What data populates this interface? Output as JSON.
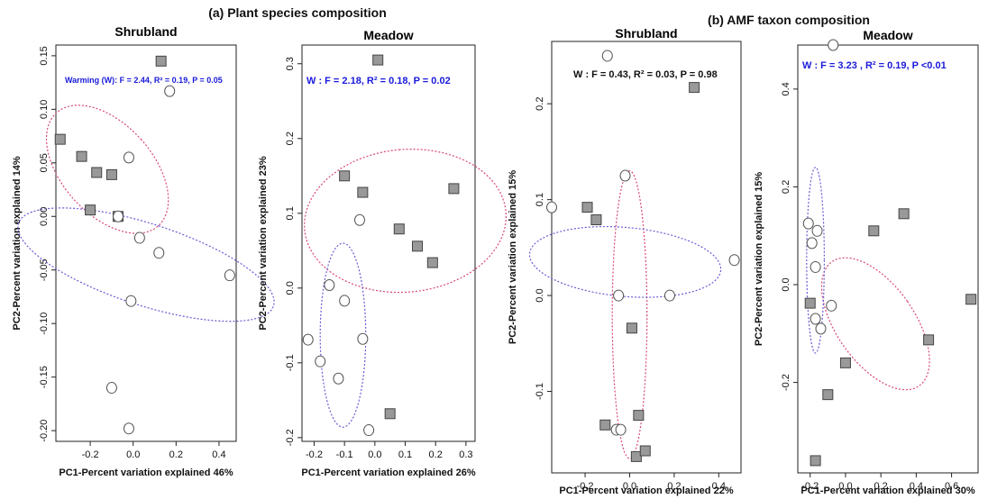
{
  "section_titles": {
    "a": "(a) Plant species composition",
    "b": "(b) AMF taxon composition"
  },
  "colors": {
    "warming_square_fill": "#999999",
    "warming_square_stroke": "#444444",
    "control_circle_stroke": "#555555",
    "warming_ellipse": "#d9477a",
    "control_ellipse": "#6a5bd6",
    "annotation_significant": "#1a1adb",
    "annotation_nonsignificant": "#111111"
  },
  "chart_data": [
    {
      "type": "scatter",
      "title": "Shrubland",
      "xlabel": "PC1-Percent variation explained 46%",
      "ylabel": "PC2-Percent variation explained 14%",
      "annotation": "Warming (W): F = 2.44, R² = 0.19, P = 0.05",
      "annotation_color": "#1a1adb",
      "xlim": [
        -0.36,
        0.48
      ],
      "ylim": [
        -0.21,
        0.16
      ],
      "xticks": [
        "-0.2",
        "0.0",
        "0.2",
        "0.4"
      ],
      "yticks": [
        "-0.20",
        "-0.15",
        "-0.10",
        "-0.05",
        "0.00",
        "0.05",
        "0.10",
        "0.15"
      ],
      "series": [
        {
          "marker": "square",
          "points": [
            [
              0.13,
              0.145
            ],
            [
              -0.34,
              0.072
            ],
            [
              -0.24,
              0.056
            ],
            [
              -0.17,
              0.041
            ],
            [
              -0.1,
              0.039
            ],
            [
              -0.2,
              0.006
            ],
            [
              -0.07,
              0.0
            ]
          ]
        },
        {
          "marker": "circle",
          "points": [
            [
              0.17,
              0.117
            ],
            [
              -0.02,
              0.055
            ],
            [
              -0.07,
              0.0
            ],
            [
              0.03,
              -0.02
            ],
            [
              0.12,
              -0.034
            ],
            [
              0.45,
              -0.055
            ],
            [
              -0.01,
              -0.079
            ],
            [
              -0.1,
              -0.16
            ],
            [
              -0.02,
              -0.198
            ]
          ]
        }
      ],
      "ellipses": [
        {
          "group": "square",
          "cx": -0.12,
          "cy": 0.044,
          "rx": 0.21,
          "ry": 0.071,
          "angle": -42
        },
        {
          "group": "circle",
          "cx": 0.06,
          "cy": -0.045,
          "rx": 0.19,
          "ry": 0.125,
          "angle": -72
        }
      ]
    },
    {
      "type": "scatter",
      "title": "Meadow",
      "xlabel": "PC1-Percent variation explained 26%",
      "ylabel": "PC2-Percent variation explained 23%",
      "annotation": "W : F = 2.18, R² = 0.18, P = 0.02",
      "annotation_color": "#1a1adb",
      "xlim": [
        -0.24,
        0.33
      ],
      "ylim": [
        -0.205,
        0.325
      ],
      "xticks": [
        "-0.2",
        "-0.1",
        "0.0",
        "0.1",
        "0.2",
        "0.3"
      ],
      "yticks": [
        "-0.2",
        "-0.1",
        "0.0",
        "0.1",
        "0.2",
        "0.3"
      ],
      "series": [
        {
          "marker": "square",
          "points": [
            [
              0.01,
              0.305
            ],
            [
              -0.1,
              0.15
            ],
            [
              -0.04,
              0.128
            ],
            [
              0.26,
              0.133
            ],
            [
              0.08,
              0.079
            ],
            [
              0.14,
              0.056
            ],
            [
              0.19,
              0.034
            ],
            [
              0.05,
              -0.168
            ]
          ]
        },
        {
          "marker": "circle",
          "points": [
            [
              -0.05,
              0.091
            ],
            [
              -0.15,
              0.004
            ],
            [
              -0.1,
              -0.017
            ],
            [
              -0.04,
              -0.068
            ],
            [
              -0.22,
              -0.069
            ],
            [
              -0.18,
              -0.098
            ],
            [
              -0.12,
              -0.121
            ],
            [
              -0.02,
              -0.19
            ]
          ]
        }
      ],
      "ellipses": [
        {
          "group": "square",
          "cx": 0.1,
          "cy": 0.09,
          "rx": 0.235,
          "ry": 0.135,
          "angle": -95
        },
        {
          "group": "circle",
          "cx": -0.105,
          "cy": -0.063,
          "rx": 0.075,
          "ry": 0.123,
          "angle": 0
        }
      ]
    },
    {
      "type": "scatter",
      "title": "Shrubland",
      "xlabel": "PC1-Percent variation explained 22%",
      "ylabel": "PC2-Percent variation explained 15%",
      "annotation": "W : F = 0.43, R² = 0.03, P = 0.98",
      "annotation_color": "#111111",
      "xlim": [
        -0.35,
        0.5
      ],
      "ylim": [
        -0.185,
        0.265
      ],
      "xticks": [
        "-0.2",
        "0.0",
        "0.2",
        "0.4"
      ],
      "yticks": [
        "-0.1",
        "0.0",
        "0.1",
        "0.2"
      ],
      "series": [
        {
          "marker": "square",
          "points": [
            [
              0.29,
              0.217
            ],
            [
              -0.19,
              0.092
            ],
            [
              -0.15,
              0.079
            ],
            [
              0.01,
              -0.034
            ],
            [
              -0.11,
              -0.135
            ],
            [
              0.04,
              -0.125
            ],
            [
              0.03,
              -0.168
            ],
            [
              0.07,
              -0.162
            ]
          ]
        },
        {
          "marker": "circle",
          "points": [
            [
              -0.1,
              0.25
            ],
            [
              -0.35,
              0.092
            ],
            [
              -0.02,
              0.125
            ],
            [
              0.47,
              0.037
            ],
            [
              -0.05,
              0.0
            ],
            [
              0.18,
              0.0
            ],
            [
              -0.06,
              -0.14
            ],
            [
              -0.04,
              -0.14
            ]
          ]
        }
      ],
      "ellipses": [
        {
          "group": "square",
          "cx": 0.0,
          "cy": -0.02,
          "rx": 0.078,
          "ry": 0.15,
          "angle": 0
        },
        {
          "group": "circle",
          "cx": -0.02,
          "cy": 0.035,
          "rx": 0.155,
          "ry": 0.1,
          "angle": -85
        }
      ]
    },
    {
      "type": "scatter",
      "title": "Meadow",
      "xlabel": "PC1-Percent variation explained 30%",
      "ylabel": "PC2-Percent variation explained 15%",
      "annotation": "W : F = 3.23 , R² = 0.19, P <0.01",
      "annotation_color": "#1a1adb",
      "xlim": [
        -0.27,
        0.75
      ],
      "ylim": [
        -0.385,
        0.49
      ],
      "xticks": [
        "-0.2",
        "0.0",
        "0.2",
        "0.4",
        "0.6"
      ],
      "yticks": [
        "-0.2",
        "0.0",
        "0.2",
        "0.4"
      ],
      "series": [
        {
          "marker": "square",
          "points": [
            [
              0.16,
              0.11
            ],
            [
              0.33,
              0.145
            ],
            [
              0.71,
              -0.03
            ],
            [
              0.47,
              -0.113
            ],
            [
              -0.2,
              -0.038
            ],
            [
              -0.1,
              -0.225
            ],
            [
              -0.17,
              -0.36
            ],
            [
              0.0,
              -0.16
            ]
          ]
        },
        {
          "marker": "circle",
          "points": [
            [
              -0.07,
              0.49
            ],
            [
              -0.21,
              0.125
            ],
            [
              -0.16,
              0.11
            ],
            [
              -0.19,
              0.085
            ],
            [
              -0.17,
              0.036
            ],
            [
              -0.17,
              -0.07
            ],
            [
              -0.14,
              -0.09
            ],
            [
              -0.08,
              -0.043
            ]
          ]
        }
      ],
      "ellipses": [
        {
          "group": "square",
          "cx": 0.17,
          "cy": -0.08,
          "rx": 0.22,
          "ry": 0.155,
          "angle": -35
        },
        {
          "group": "circle",
          "cx": -0.17,
          "cy": 0.05,
          "rx": 0.05,
          "ry": 0.19,
          "angle": 0
        }
      ]
    }
  ]
}
